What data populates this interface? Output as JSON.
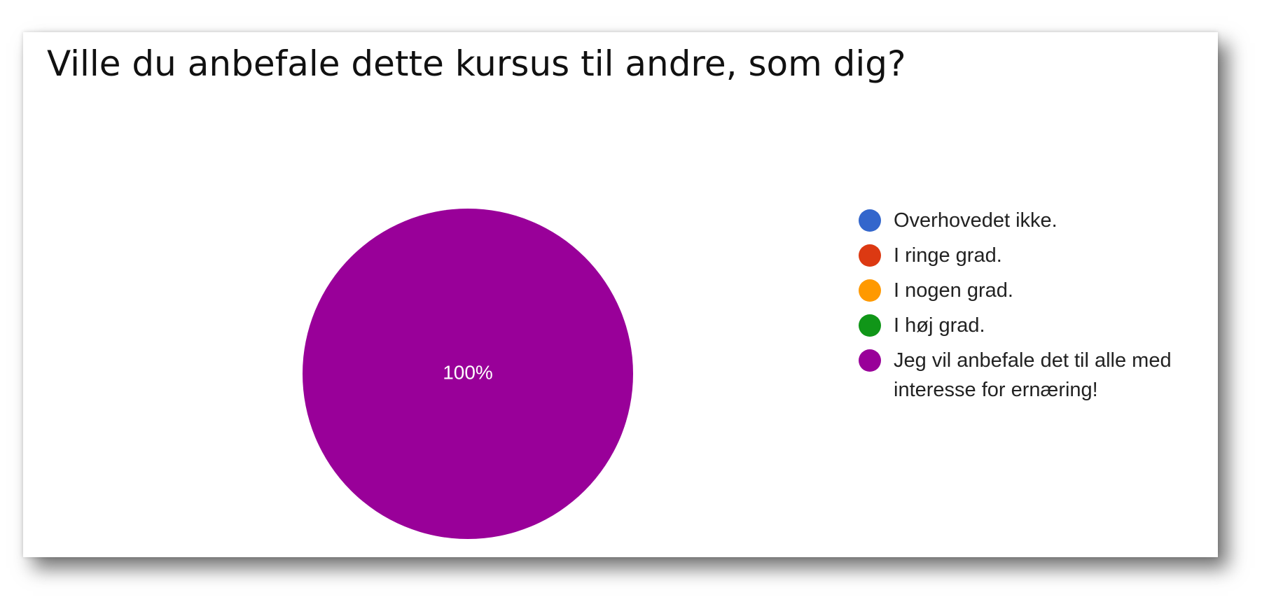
{
  "chart_data": {
    "type": "pie",
    "title": "Ville du anbefale dette kursus til andre, som dig?",
    "legend_position": "right",
    "slices": [
      {
        "label": "Overhovedet ikke.",
        "value": 0,
        "color": "#3366cc"
      },
      {
        "label": "I ringe grad.",
        "value": 0,
        "color": "#dc3912"
      },
      {
        "label": "I nogen grad.",
        "value": 0,
        "color": "#ff9900"
      },
      {
        "label": "I høj grad.",
        "value": 0,
        "color": "#109618"
      },
      {
        "label": "Jeg vil anbefale det til alle med interesse for ernæring!",
        "value": 100,
        "color": "#990099"
      }
    ],
    "data_labels": [
      "100%"
    ]
  }
}
